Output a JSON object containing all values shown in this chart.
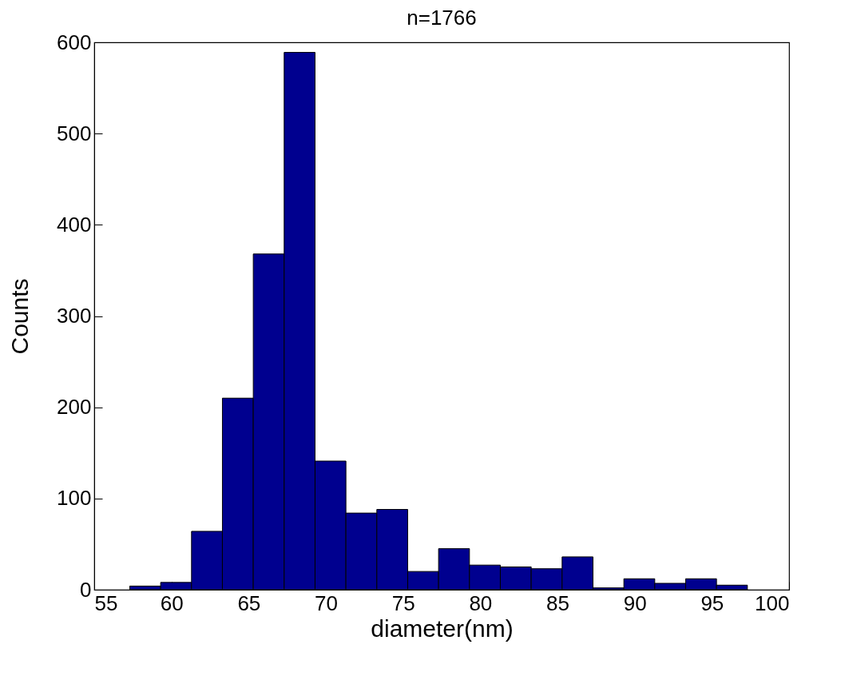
{
  "chart_data": {
    "type": "histogram",
    "title": "n=1766",
    "xlabel": "diameter(nm)",
    "ylabel": "Counts",
    "bins": [
      57.3,
      59.3,
      61.3,
      63.3,
      65.3,
      67.3,
      69.3,
      71.3,
      73.3,
      75.3,
      77.3,
      79.3,
      81.3,
      83.3,
      85.3,
      87.3,
      89.3,
      91.3,
      93.3,
      95.3,
      97.3
    ],
    "values": [
      4,
      8,
      64,
      210,
      368,
      589,
      141,
      84,
      88,
      20,
      45,
      27,
      25,
      23,
      36,
      2,
      12,
      7,
      12,
      5
    ],
    "color": "#00008f",
    "xlim": [
      55,
      100
    ],
    "xticks": [
      55,
      60,
      65,
      70,
      75,
      80,
      85,
      90,
      95,
      100
    ],
    "ylim": [
      0,
      600
    ],
    "yticks": [
      0,
      100,
      200,
      300,
      400,
      500,
      600
    ],
    "grid": false
  }
}
